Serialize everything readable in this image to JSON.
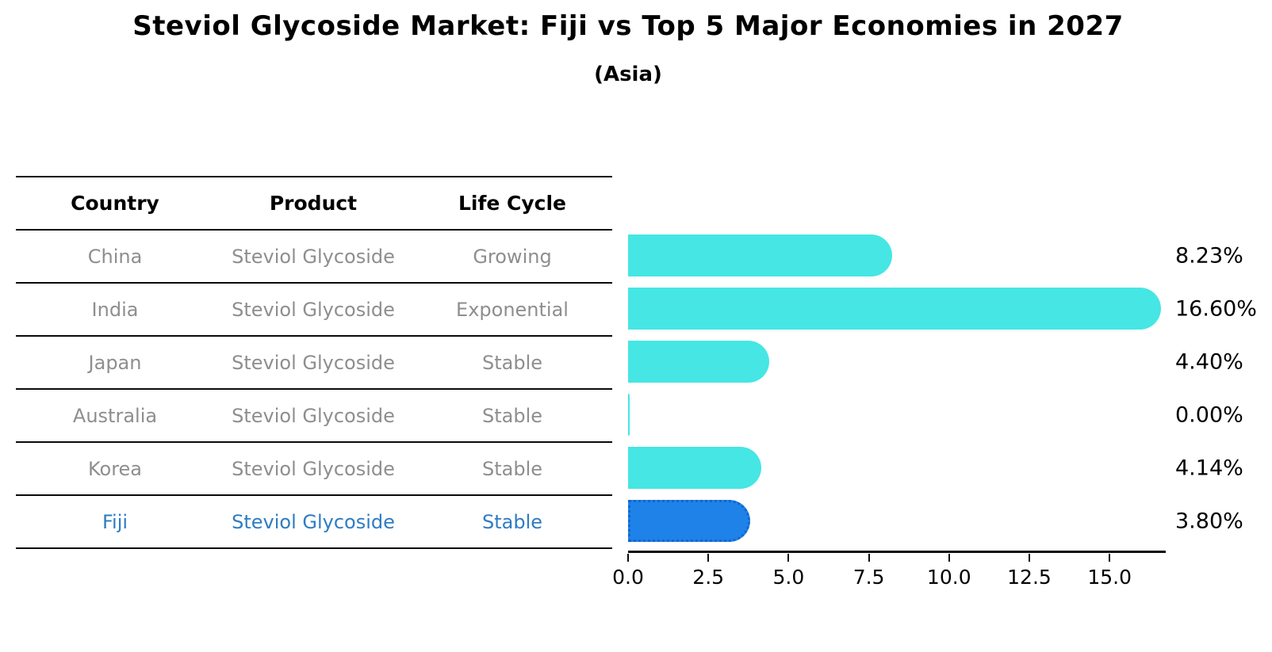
{
  "header": {
    "title": "Steviol Glycoside Market: Fiji vs Top 5 Major Economies in 2027",
    "subtitle": "(Asia)"
  },
  "table": {
    "headers": [
      "Country",
      "Product",
      "Life Cycle"
    ],
    "rows": [
      {
        "country": "China",
        "product": "Steviol Glycoside",
        "life_cycle": "Growing",
        "highlight": false
      },
      {
        "country": "India",
        "product": "Steviol Glycoside",
        "life_cycle": "Exponential",
        "highlight": false
      },
      {
        "country": "Japan",
        "product": "Steviol Glycoside",
        "life_cycle": "Stable",
        "highlight": false
      },
      {
        "country": "Australia",
        "product": "Steviol Glycoside",
        "life_cycle": "Stable",
        "highlight": false
      },
      {
        "country": "Korea",
        "product": "Steviol Glycoside",
        "life_cycle": "Stable",
        "highlight": false
      },
      {
        "country": "Fiji",
        "product": "Steviol Glycoside",
        "life_cycle": "Stable",
        "highlight": true
      }
    ]
  },
  "chart_data": {
    "type": "bar",
    "orientation": "horizontal",
    "title": "Steviol Glycoside Market: Fiji vs Top 5 Major Economies in 2027",
    "subtitle": "(Asia)",
    "categories": [
      "China",
      "India",
      "Japan",
      "Australia",
      "Korea",
      "Fiji"
    ],
    "values": [
      8.23,
      16.6,
      4.4,
      0.0,
      4.14,
      3.8
    ],
    "value_labels": [
      "8.23%",
      "16.60%",
      "4.40%",
      "0.00%",
      "4.14%",
      "3.80%"
    ],
    "xlim": [
      0,
      16.75
    ],
    "x_ticks": [
      0.0,
      2.5,
      5.0,
      7.5,
      10.0,
      12.5,
      15.0
    ],
    "x_tick_labels": [
      "0.0",
      "2.5",
      "5.0",
      "7.5",
      "10.0",
      "12.5",
      "15.0"
    ],
    "highlight_index": 5,
    "grid": false,
    "legend": false
  },
  "colors": {
    "bar_default": "#45e6e4",
    "bar_highlight": "#1e82e8",
    "bar_highlight_border": "#1565d0",
    "highlight_text": "#2e7cc3",
    "table_text": "#8e8e8e",
    "axis": "#0a0a0a"
  }
}
